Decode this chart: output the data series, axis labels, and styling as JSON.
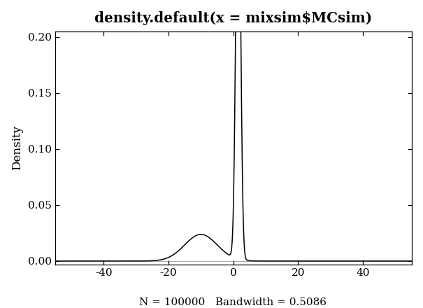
{
  "title": "density.default(x = mixsim$MCsim)",
  "ylabel": "Density",
  "footer": "N = 100000   Bandwidth = 0.5086",
  "xlim": [
    -55,
    55
  ],
  "ylim": [
    -0.003,
    0.205
  ],
  "xticks": [
    -40,
    -20,
    0,
    20,
    40
  ],
  "yticks": [
    0.0,
    0.05,
    0.1,
    0.15,
    0.2
  ],
  "line_color": "#000000",
  "background_color": "#ffffff",
  "title_fontsize": 13,
  "label_fontsize": 11,
  "tick_fontsize": 10,
  "footer_fontsize": 10,
  "mixture_weights": [
    0.3,
    0.7
  ],
  "mixture_means": [
    -10,
    1.5
  ],
  "mixture_stds": [
    5.0,
    0.5086
  ],
  "bandwidth": 0.5086,
  "n_points": 100000
}
